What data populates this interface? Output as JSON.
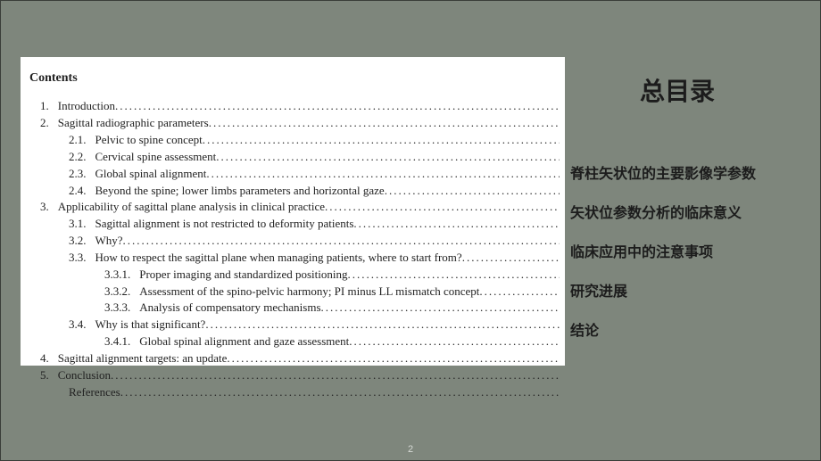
{
  "colors": {
    "background": "#7e867c",
    "panel_bg": "#ffffff",
    "text": "#222222",
    "page_num": "#d6d9d5"
  },
  "contents": {
    "heading": "Contents",
    "items": [
      {
        "num": "1.",
        "text": "Introduction ",
        "lvl": 1
      },
      {
        "num": "2.",
        "text": "Sagittal radiographic parameters ",
        "lvl": 1
      },
      {
        "num": "2.1.",
        "text": "Pelvic to spine concept",
        "lvl": 2
      },
      {
        "num": "2.2.",
        "text": "Cervical spine assessment ",
        "lvl": 2
      },
      {
        "num": "2.3.",
        "text": "Global spinal alignment",
        "lvl": 2
      },
      {
        "num": "2.4.",
        "text": "Beyond the spine; lower limbs parameters and horizontal gaze ",
        "lvl": 2
      },
      {
        "num": "3.",
        "text": "Applicability of sagittal plane analysis in clinical practice",
        "lvl": 1
      },
      {
        "num": "3.1.",
        "text": "Sagittal alignment is not restricted to deformity patients ",
        "lvl": 2
      },
      {
        "num": "3.2.",
        "text": "Why?",
        "lvl": 2
      },
      {
        "num": "3.3.",
        "text": "How to respect the sagittal plane when managing patients, where to start from? ",
        "lvl": 2
      },
      {
        "num": "3.3.1.",
        "text": "Proper imaging and standardized positioning",
        "lvl": 3
      },
      {
        "num": "3.3.2.",
        "text": "Assessment of the spino-pelvic harmony; PI minus LL mismatch concept ",
        "lvl": 3
      },
      {
        "num": "3.3.3.",
        "text": "Analysis of compensatory mechanisms ",
        "lvl": 3
      },
      {
        "num": "3.4.",
        "text": "Why is that significant?",
        "lvl": 2
      },
      {
        "num": "3.4.1.",
        "text": "Global spinal alignment and gaze assessment",
        "lvl": 3
      },
      {
        "num": "4.",
        "text": "Sagittal alignment targets: an update ",
        "lvl": 1
      },
      {
        "num": "5.",
        "text": "Conclusion ",
        "lvl": 1
      },
      {
        "num": "",
        "text": "References ",
        "lvl": "noref"
      }
    ]
  },
  "right": {
    "title": "总目录",
    "items": [
      "脊柱矢状位的主要影像学参数",
      "矢状位参数分析的临床意义",
      "临床应用中的注意事项",
      "研究进展",
      "结论"
    ]
  },
  "page_number": "2"
}
